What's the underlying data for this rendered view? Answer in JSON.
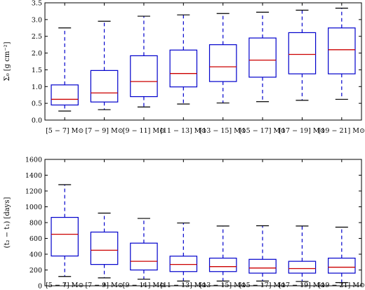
{
  "chart_data": [
    {
      "type": "box",
      "ylabel": "Σ₀ [g cm⁻²]",
      "ylim": [
        0.0,
        3.5
      ],
      "yticks": [
        0.0,
        0.5,
        1.0,
        1.5,
        2.0,
        2.5,
        3.0,
        3.5
      ],
      "categories": [
        "[5 − 7] M⊙",
        "[7 − 9] M⊙",
        "[9 − 11] M⊙",
        "[11 − 13] M⊙",
        "[13 − 15] M⊙",
        "[15 − 17] M⊙",
        "[17 − 19] M⊙",
        "[19 − 21] M⊙"
      ],
      "boxes": [
        {
          "whisker_low": 0.27,
          "q1": 0.45,
          "median": 0.62,
          "q3": 1.05,
          "whisker_high": 2.75
        },
        {
          "whisker_low": 0.31,
          "q1": 0.54,
          "median": 0.81,
          "q3": 1.48,
          "whisker_high": 2.95
        },
        {
          "whisker_low": 0.39,
          "q1": 0.7,
          "median": 1.15,
          "q3": 1.92,
          "whisker_high": 3.1
        },
        {
          "whisker_low": 0.48,
          "q1": 0.99,
          "median": 1.39,
          "q3": 2.09,
          "whisker_high": 3.14
        },
        {
          "whisker_low": 0.51,
          "q1": 1.15,
          "median": 1.59,
          "q3": 2.25,
          "whisker_high": 3.18
        },
        {
          "whisker_low": 0.55,
          "q1": 1.28,
          "median": 1.79,
          "q3": 2.45,
          "whisker_high": 3.22
        },
        {
          "whisker_low": 0.59,
          "q1": 1.38,
          "median": 1.96,
          "q3": 2.61,
          "whisker_high": 3.28
        },
        {
          "whisker_low": 0.62,
          "q1": 1.38,
          "median": 2.1,
          "q3": 2.75,
          "whisker_high": 3.34
        }
      ]
    },
    {
      "type": "box",
      "ylabel": "(t₂ − t₁) [days]",
      "ylim": [
        0,
        1600
      ],
      "yticks": [
        0,
        200,
        400,
        600,
        800,
        1000,
        1200,
        1400,
        1600
      ],
      "categories": [
        "[5 − 7] M⊙",
        "[7 − 9] M⊙",
        "[9 − 11] M⊙",
        "[11 − 13] M⊙",
        "[13 − 15] M⊙",
        "[15 − 17] M⊙",
        "[17 − 19] M⊙",
        "[19 − 21] M⊙"
      ],
      "boxes": [
        {
          "whisker_low": 118,
          "q1": 377,
          "median": 652,
          "q3": 866,
          "whisker_high": 1280
        },
        {
          "whisker_low": 100,
          "q1": 270,
          "median": 450,
          "q3": 680,
          "whisker_high": 920
        },
        {
          "whisker_low": 84,
          "q1": 200,
          "median": 310,
          "q3": 540,
          "whisker_high": 853
        },
        {
          "whisker_low": 60,
          "q1": 180,
          "median": 270,
          "q3": 375,
          "whisker_high": 795
        },
        {
          "whisker_low": 60,
          "q1": 180,
          "median": 243,
          "q3": 350,
          "whisker_high": 757
        },
        {
          "whisker_low": 60,
          "q1": 160,
          "median": 225,
          "q3": 335,
          "whisker_high": 760
        },
        {
          "whisker_low": 55,
          "q1": 160,
          "median": 218,
          "q3": 310,
          "whisker_high": 757
        },
        {
          "whisker_low": 40,
          "q1": 160,
          "median": 235,
          "q3": 350,
          "whisker_high": 742
        }
      ]
    }
  ],
  "colors": {
    "box": "#0000cc",
    "median": "#cc0000",
    "whisker_cap": "#000000",
    "frame": "#000000"
  }
}
